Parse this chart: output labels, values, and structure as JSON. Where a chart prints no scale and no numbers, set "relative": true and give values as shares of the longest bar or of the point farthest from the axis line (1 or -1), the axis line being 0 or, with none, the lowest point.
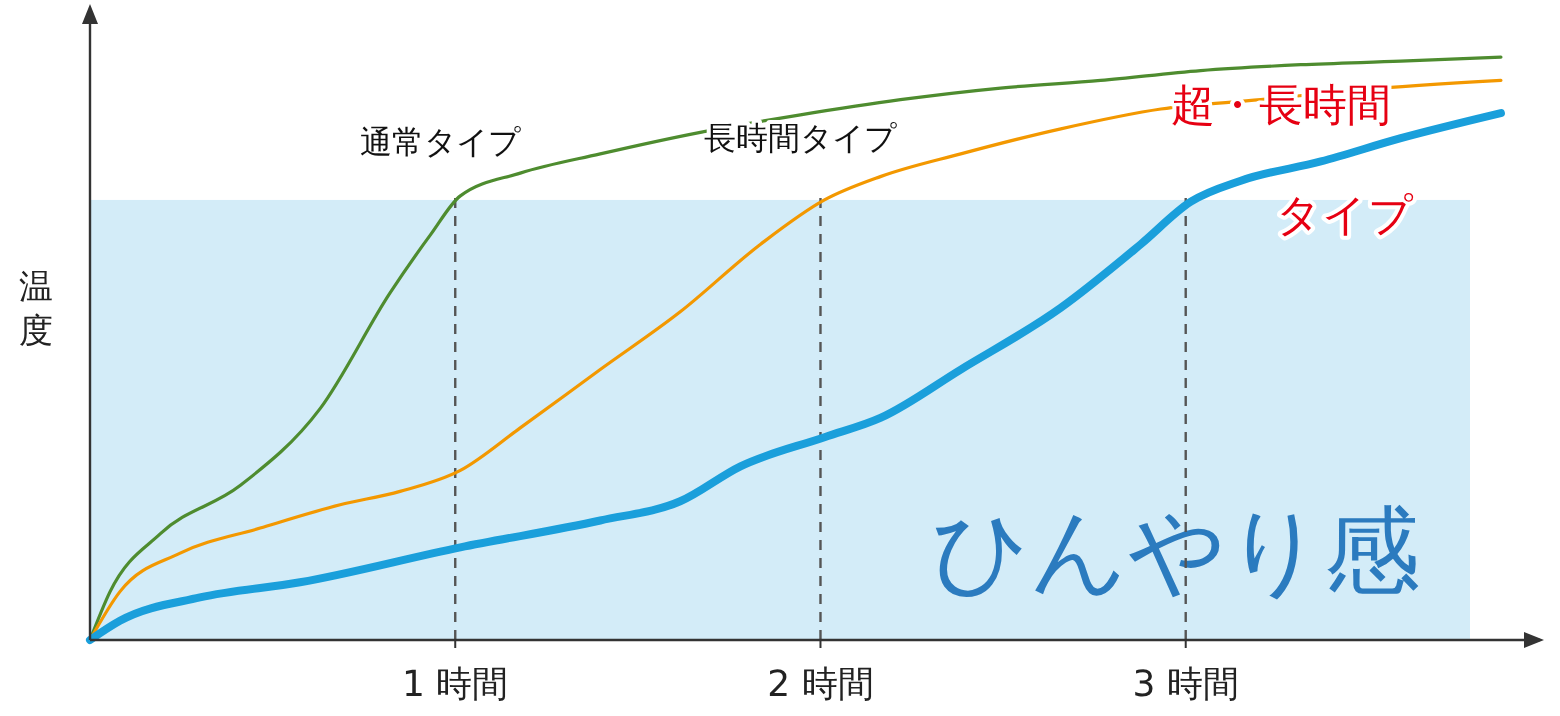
{
  "chart_data": {
    "type": "line",
    "relative": true,
    "ylabel": "温度",
    "xlim": [
      0,
      3.97
    ],
    "xticks": [
      {
        "value": 1,
        "label": "1 時間"
      },
      {
        "value": 2,
        "label": "2 時間"
      },
      {
        "value": 3,
        "label": "3 時間"
      }
    ],
    "grid": false,
    "legend": false,
    "marker": "none",
    "line_style": "solid",
    "series": [
      {
        "name": "通常タイプ",
        "color": "#4e8c2f",
        "x": [
          0,
          0.055,
          0.192,
          0.411,
          0.63,
          0.822,
          0.932,
          1.014,
          1.178,
          1.397,
          1.671,
          1.945,
          2.219,
          2.493,
          2.767,
          3.041,
          3.315,
          3.589,
          3.863
        ],
        "values": [
          0,
          0.083,
          0.182,
          0.265,
          0.397,
          0.596,
          0.695,
          0.762,
          0.801,
          0.834,
          0.871,
          0.901,
          0.927,
          0.947,
          0.96,
          0.977,
          0.987,
          0.993,
          1
        ]
      },
      {
        "name": "長時間タイプ",
        "color": "#f39800",
        "x": [
          0,
          0.082,
          0.247,
          0.466,
          0.685,
          0.849,
          1.014,
          1.178,
          1.397,
          1.616,
          1.836,
          2.011,
          2.164,
          2.384,
          2.658,
          2.932,
          3.205,
          3.479,
          3.863
        ],
        "values": [
          0,
          0.083,
          0.149,
          0.192,
          0.232,
          0.255,
          0.291,
          0.364,
          0.464,
          0.563,
          0.679,
          0.755,
          0.795,
          0.834,
          0.877,
          0.911,
          0.927,
          0.944,
          0.96
        ]
      },
      {
        "name": "超・長時間タイプ",
        "color": "#1a9fdb",
        "x": [
          0,
          0.082,
          0.301,
          0.575,
          1.014,
          1.397,
          1.616,
          1.781,
          2.011,
          2.164,
          2.384,
          2.658,
          2.877,
          3.014,
          3.151,
          3.37,
          3.589,
          3.863
        ],
        "values": [
          0,
          0.033,
          0.073,
          0.099,
          0.159,
          0.205,
          0.238,
          0.298,
          0.348,
          0.381,
          0.464,
          0.57,
          0.679,
          0.752,
          0.788,
          0.821,
          0.861,
          0.904
        ]
      }
    ],
    "ref_lines": [
      {
        "axis": "x",
        "value": 1,
        "color": "#555555",
        "line_style": "dashed"
      },
      {
        "axis": "x",
        "value": 2,
        "color": "#555555",
        "line_style": "dashed"
      },
      {
        "axis": "x",
        "value": 3,
        "color": "#555555",
        "line_style": "dashed"
      }
    ],
    "bands": [
      {
        "axis": "y",
        "from": 0,
        "to": 0.755,
        "label": "ひんやり感",
        "color": "#d3ecf8"
      }
    ]
  }
}
